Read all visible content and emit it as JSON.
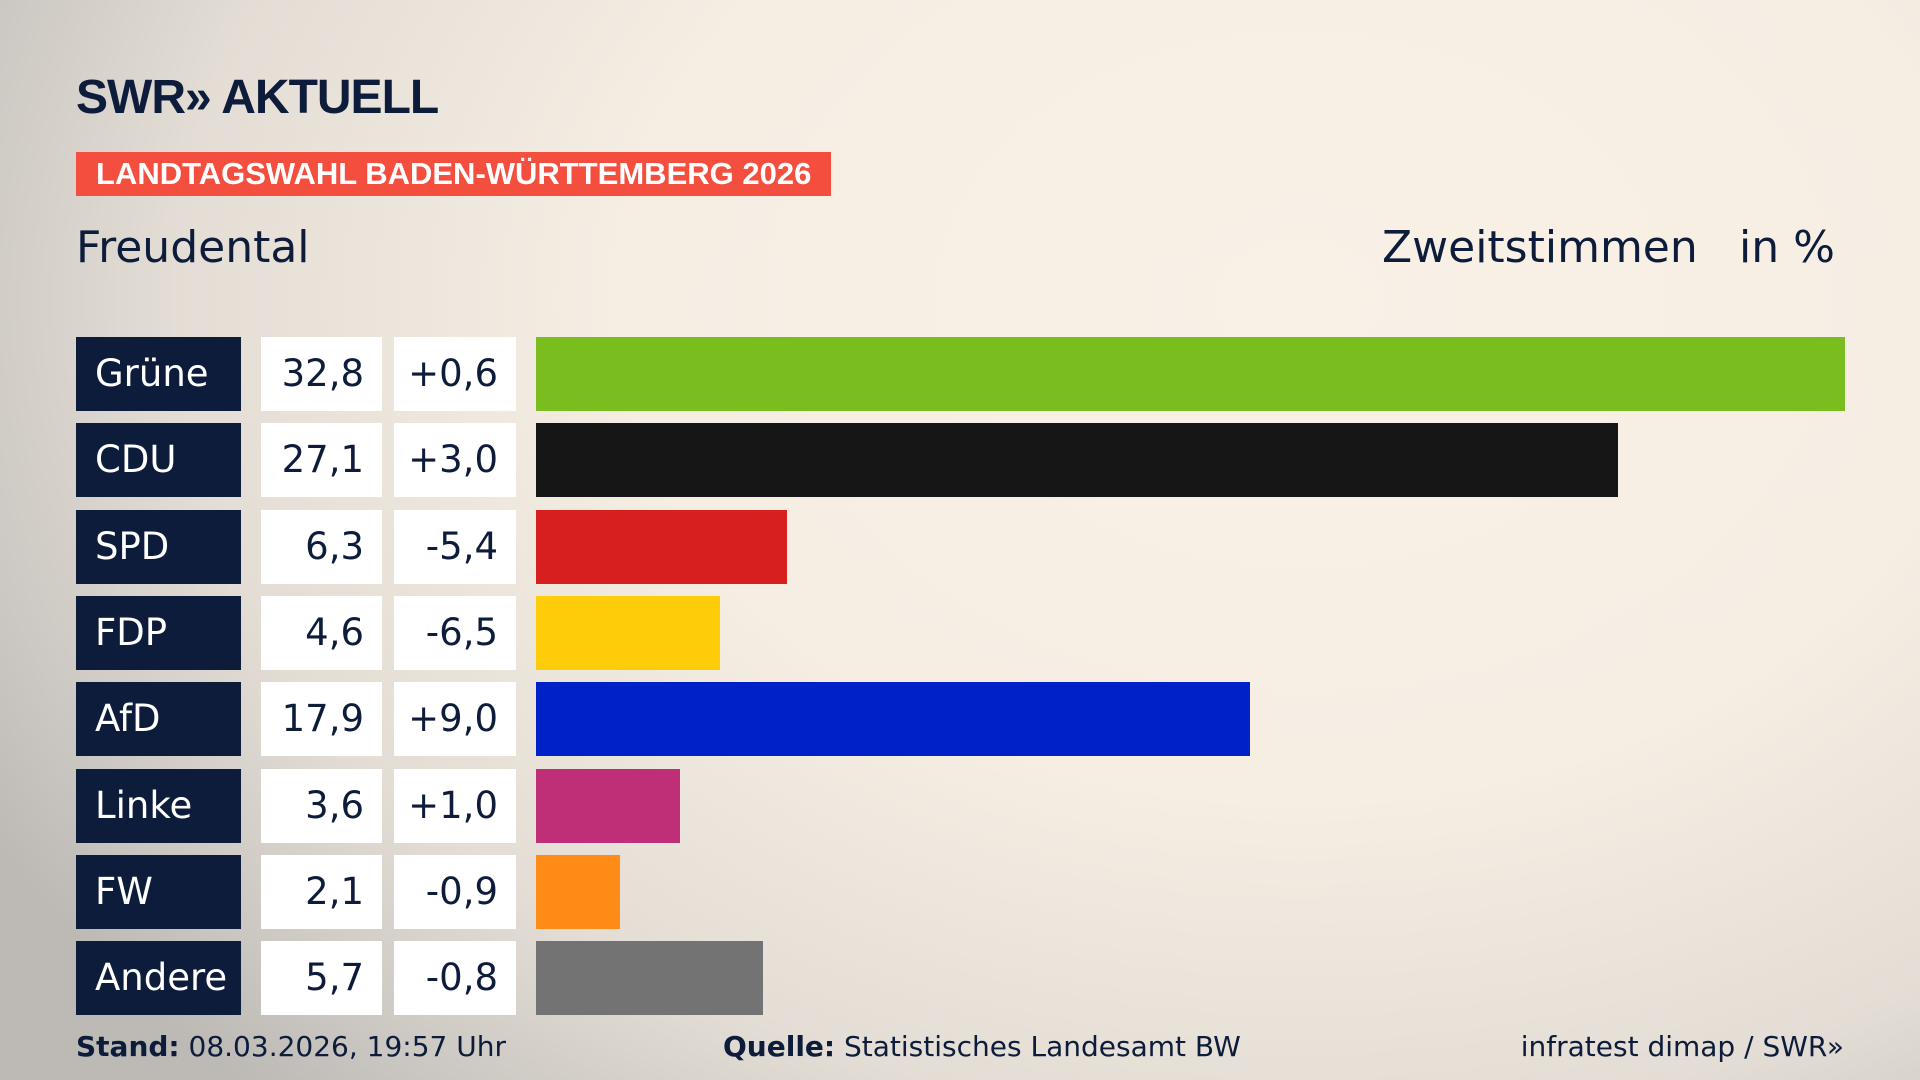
{
  "header": {
    "logo": "SWR» AKTUELL",
    "banner": "LANDTAGSWAHL BADEN-WÜRTTEMBERG 2026",
    "place": "Freudental",
    "metric": "Zweitstimmen",
    "unit": "in %"
  },
  "chart_data": {
    "type": "bar",
    "orientation": "horizontal",
    "categories": [
      "Grüne",
      "CDU",
      "SPD",
      "FDP",
      "AfD",
      "Linke",
      "FW",
      "Andere"
    ],
    "values": [
      32.8,
      27.1,
      6.3,
      4.6,
      17.9,
      3.6,
      2.1,
      5.7
    ],
    "value_labels": [
      "32,8",
      "27,1",
      "6,3",
      "4,6",
      "17,9",
      "3,6",
      "2,1",
      "5,7"
    ],
    "changes": [
      0.6,
      3.0,
      -5.4,
      -6.5,
      9.0,
      1.0,
      -0.9,
      -0.8
    ],
    "change_labels": [
      "+0,6",
      "+3,0",
      "-5,4",
      "-6,5",
      "+9,0",
      "+1,0",
      "-0,9",
      "-0,8"
    ],
    "colors": [
      "#7abd1e",
      "#161616",
      "#d71f1d",
      "#ffcc0a",
      "#0021c8",
      "#bf2f77",
      "#ff8c17",
      "#737373"
    ],
    "xlim": [
      0,
      32.8
    ],
    "grid": false,
    "legend": "none"
  },
  "footer": {
    "stand_label": "Stand:",
    "stand": "08.03.2026, 19:57 Uhr",
    "source_label": "Quelle:",
    "source": "Statistisches Landesamt BW",
    "credit": "infratest dimap / SWR»"
  }
}
